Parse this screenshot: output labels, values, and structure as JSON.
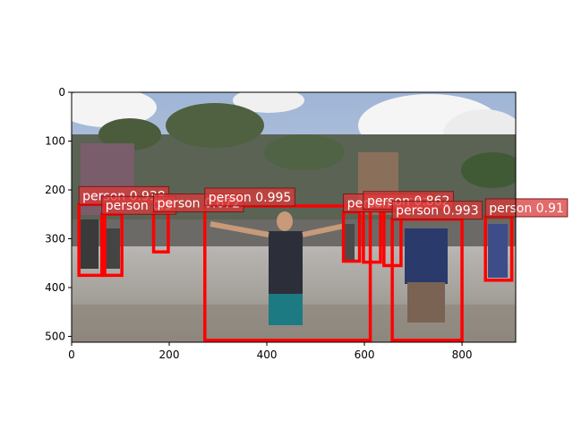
{
  "chart_data": {
    "type": "image-with-detections",
    "xlim": [
      0,
      910
    ],
    "ylim": [
      512,
      0
    ],
    "xticks": [
      0,
      200,
      400,
      600,
      800
    ],
    "yticks": [
      0,
      100,
      200,
      300,
      400,
      500
    ],
    "box_color": "#ff0000",
    "detections": [
      {
        "label": "person 0.938",
        "x0": 15,
        "y0": 230,
        "x1": 68,
        "y1": 375
      },
      {
        "label": "person 0.9",
        "x0": 62,
        "y0": 250,
        "x1": 103,
        "y1": 375
      },
      {
        "label": "person 0.672",
        "x0": 168,
        "y0": 245,
        "x1": 198,
        "y1": 327
      },
      {
        "label": "person 0.995",
        "x0": 273,
        "y0": 233,
        "x1": 612,
        "y1": 508
      },
      {
        "label": "person 0.617",
        "x0": 557,
        "y0": 245,
        "x1": 590,
        "y1": 346
      },
      {
        "label": "person 0.862",
        "x0": 598,
        "y0": 240,
        "x1": 633,
        "y1": 348
      },
      {
        "label": "",
        "x0": 640,
        "y0": 243,
        "x1": 675,
        "y1": 355
      },
      {
        "label": "person 0.993",
        "x0": 657,
        "y0": 260,
        "x1": 800,
        "y1": 508
      },
      {
        "label": "person 0.91",
        "x0": 848,
        "y0": 255,
        "x1": 902,
        "y1": 385
      }
    ]
  }
}
